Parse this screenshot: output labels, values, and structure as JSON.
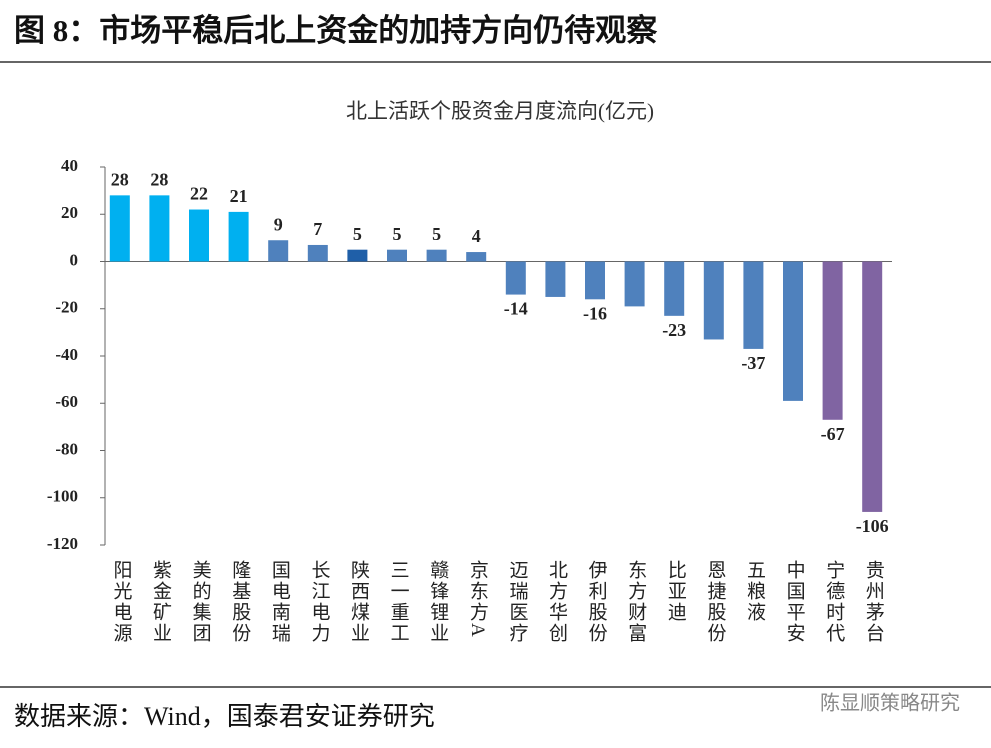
{
  "header": {
    "title": "图 8：市场平稳后北上资金的加持方向仍待观察"
  },
  "chart_data": {
    "type": "bar",
    "title": "北上活跃个股资金月度流向(亿元)",
    "categories": [
      "阳光电源",
      "紫金矿业",
      "美的集团",
      "隆基股份",
      "国电南瑞",
      "长江电力",
      "陕西煤业",
      "三一重工",
      "赣锋锂业",
      "京东方A",
      "迈瑞医疗",
      "北方华创",
      "伊利股份",
      "东方财富",
      "比亚迪",
      "恩捷股份",
      "五粮液",
      "中国平安",
      "宁德时代",
      "贵州茅台"
    ],
    "values": [
      28,
      28,
      22,
      21,
      9,
      7,
      5,
      5,
      5,
      4,
      -14,
      -15,
      -16,
      -19,
      -23,
      -33,
      -37,
      -59,
      -67,
      -106
    ],
    "value_labels": [
      "28",
      "28",
      "22",
      "21",
      "9",
      "7",
      "5",
      "5",
      "5",
      "4",
      "-14",
      null,
      "-16",
      null,
      "-23",
      null,
      "-37",
      null,
      "-67",
      "-106"
    ],
    "colors": [
      "#00b0f0",
      "#00b0f0",
      "#00b0f0",
      "#00b0f0",
      "#4f81bd",
      "#4f81bd",
      "#1f5fa8",
      "#4f81bd",
      "#4f81bd",
      "#4f81bd",
      "#4f81bd",
      "#4f81bd",
      "#4f81bd",
      "#4f81bd",
      "#4f81bd",
      "#4f81bd",
      "#4f81bd",
      "#4f81bd",
      "#8064a2",
      "#8064a2"
    ],
    "ylim": [
      -120,
      40
    ],
    "yticks": [
      -120,
      -100,
      -80,
      -60,
      -40,
      -20,
      0,
      20,
      40
    ],
    "grid": false
  },
  "footer": {
    "source": "数据来源：Wind，国泰君安证券研究",
    "watermark": "陈显顺策略研究"
  }
}
